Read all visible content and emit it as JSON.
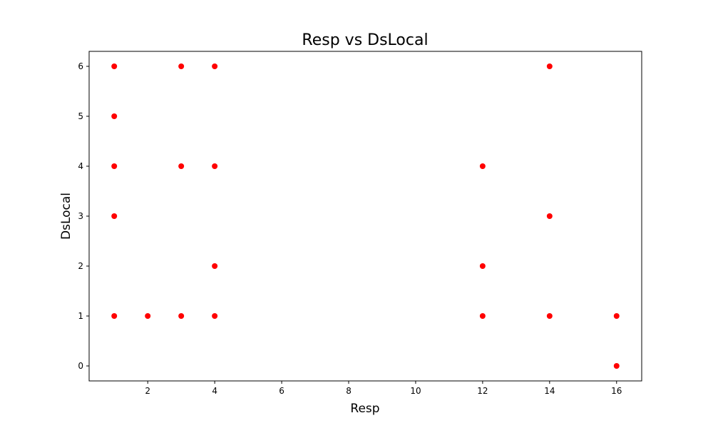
{
  "chart_data": {
    "type": "scatter",
    "title": "Resp vs DsLocal",
    "xlabel": "Resp",
    "ylabel": "DsLocal",
    "xlim": [
      0.25,
      16.75
    ],
    "ylim": [
      -0.3,
      6.3
    ],
    "xticks": [
      2,
      4,
      6,
      8,
      10,
      12,
      14,
      16
    ],
    "yticks": [
      0,
      1,
      2,
      3,
      4,
      5,
      6
    ],
    "grid": false,
    "marker_color": "#ff0000",
    "points": [
      {
        "x": 1,
        "y": 6
      },
      {
        "x": 1,
        "y": 5
      },
      {
        "x": 1,
        "y": 4
      },
      {
        "x": 1,
        "y": 3
      },
      {
        "x": 1,
        "y": 1
      },
      {
        "x": 2,
        "y": 1
      },
      {
        "x": 3,
        "y": 6
      },
      {
        "x": 3,
        "y": 4
      },
      {
        "x": 3,
        "y": 1
      },
      {
        "x": 4,
        "y": 6
      },
      {
        "x": 4,
        "y": 4
      },
      {
        "x": 4,
        "y": 2
      },
      {
        "x": 4,
        "y": 1
      },
      {
        "x": 12,
        "y": 4
      },
      {
        "x": 12,
        "y": 2
      },
      {
        "x": 12,
        "y": 1
      },
      {
        "x": 14,
        "y": 6
      },
      {
        "x": 14,
        "y": 3
      },
      {
        "x": 14,
        "y": 1
      },
      {
        "x": 16,
        "y": 1
      },
      {
        "x": 16,
        "y": 0
      }
    ]
  }
}
